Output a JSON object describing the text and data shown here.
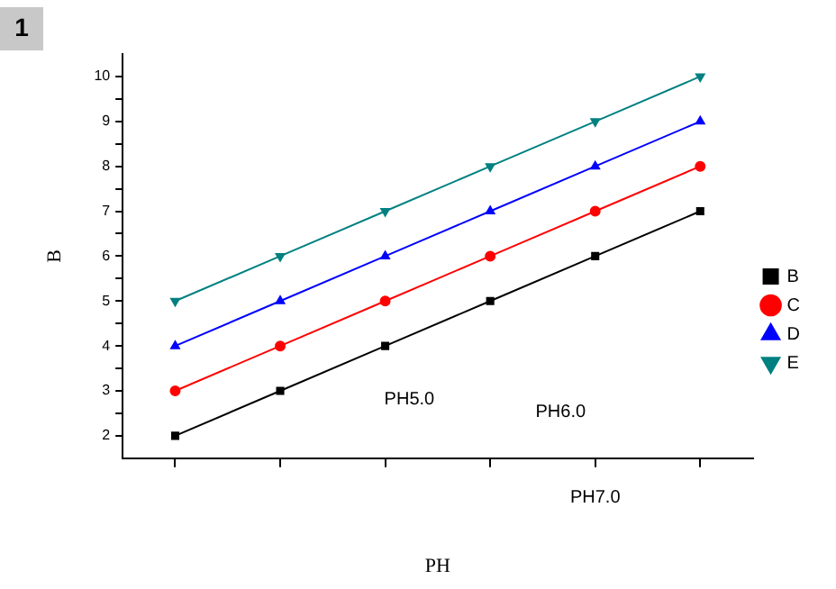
{
  "chart_data": {
    "type": "line",
    "xlabel": "PH",
    "ylabel": "B",
    "categories": [
      null,
      null,
      null,
      null,
      null,
      null
    ],
    "series": [
      {
        "name": "B",
        "color": "#000000",
        "marker": "square",
        "values": [
          2,
          3,
          4,
          5,
          6,
          7
        ]
      },
      {
        "name": "C",
        "color": "#ff0000",
        "marker": "circle",
        "values": [
          3,
          4,
          5,
          6,
          7,
          8
        ]
      },
      {
        "name": "D",
        "color": "#0000ff",
        "marker": "triangle",
        "values": [
          4,
          5,
          6,
          7,
          8,
          9
        ]
      },
      {
        "name": "E",
        "color": "#008080",
        "marker": "triangle-down",
        "values": [
          5,
          6,
          7,
          8,
          9,
          10
        ]
      }
    ],
    "ylim": [
      1.5,
      10.5
    ],
    "yticks": [
      2,
      {
        "value": 2.5,
        "label": null
      },
      3,
      {
        "value": 3.5,
        "label": null
      },
      4,
      {
        "value": 4.5,
        "label": null
      },
      5,
      {
        "value": 5.5,
        "label": null
      },
      6,
      {
        "value": 6.5,
        "label": null
      },
      7,
      {
        "value": 7.5,
        "label": null
      },
      8,
      {
        "value": 8.5,
        "label": null
      },
      9,
      {
        "value": 9.5,
        "label": null
      },
      10
    ],
    "annotations": [
      "1",
      "PH5.0",
      "PH6.0",
      "PH7.0"
    ],
    "legend": "right",
    "grid": false,
    "line_style": "solid"
  }
}
